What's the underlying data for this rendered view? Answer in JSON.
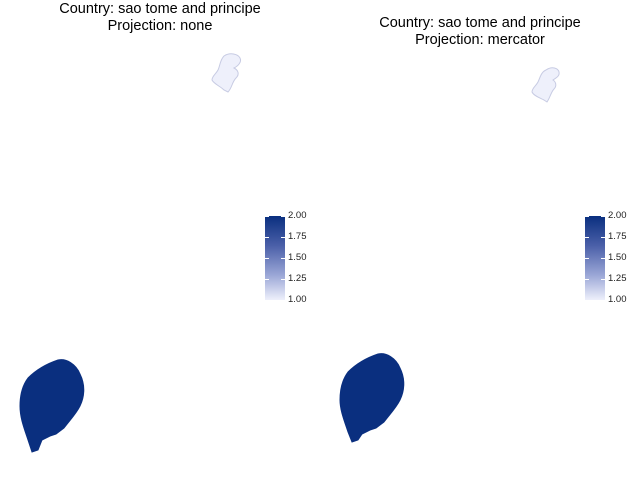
{
  "panels": [
    {
      "title_line1": "Country: sao tome and principe",
      "title_line2": "Projection: none"
    },
    {
      "title_line1": "Country: sao tome and principe",
      "title_line2": "Projection: mercator"
    }
  ],
  "legend": {
    "ticks": [
      "2.00",
      "1.75",
      "1.50",
      "1.25",
      "1.00"
    ],
    "range": [
      1.0,
      2.0
    ],
    "high_color": "#0a2f7f",
    "low_color": "#eef0fb"
  },
  "regions": [
    {
      "name": "Principe",
      "value": 1.0,
      "color": "#eef0fb"
    },
    {
      "name": "Sao Tome",
      "value": 2.0,
      "color": "#0a2f7f"
    }
  ]
}
